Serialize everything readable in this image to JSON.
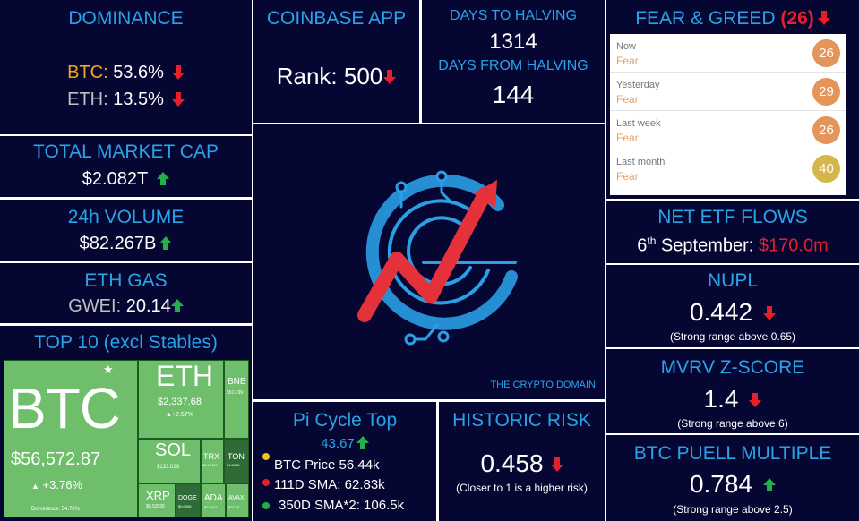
{
  "dominance": {
    "title": "DOMINANCE",
    "btc_label": "BTC:",
    "btc_value": " 53.6%",
    "eth_label": "ETH:",
    "eth_value": " 13.5%"
  },
  "coinbase": {
    "title": "COINBASE APP",
    "rank": "Rank: 500"
  },
  "halving": {
    "to_title": "DAYS TO HALVING",
    "to_value": "1314",
    "from_title": "DAYS FROM HALVING",
    "from_value": "144"
  },
  "fear_greed": {
    "title": "FEAR & GREED",
    "score": "(26)",
    "rows": [
      {
        "label": "Now",
        "sentiment": "Fear",
        "value": "26",
        "color": "#e5945a"
      },
      {
        "label": "Yesterday",
        "sentiment": "Fear",
        "value": "29",
        "color": "#e5945a"
      },
      {
        "label": "Last week",
        "sentiment": "Fear",
        "value": "26",
        "color": "#e5945a"
      },
      {
        "label": "Last month",
        "sentiment": "Fear",
        "value": "40",
        "color": "#d4b64a"
      }
    ]
  },
  "market_cap": {
    "title": "TOTAL MARKET CAP",
    "value": "$2.082T"
  },
  "volume": {
    "title": "24h VOLUME",
    "value": "$82.267B"
  },
  "eth_gas": {
    "title": "ETH GAS",
    "label": "GWEI:",
    "value": " 20.14"
  },
  "top10": {
    "title": "TOP 10 (excl Stables)",
    "btc": {
      "name": "BTC",
      "price": "$56,572.87",
      "change": "+3.76%",
      "dominance": "Dominance: 54.78%"
    },
    "eth": {
      "name": "ETH",
      "price": "$2,337.68",
      "change": "+2.57%"
    },
    "bnb": {
      "name": "BNB",
      "price": "$517.99"
    },
    "sol": {
      "name": "SOL",
      "price": "$133.029"
    },
    "trx": {
      "name": "TRX",
      "price": "$0.15417"
    },
    "ton": {
      "name": "TON",
      "price": "$4.5035"
    },
    "xrp": {
      "name": "XRP",
      "price": "$0.53535"
    },
    "doge": {
      "name": "DOGE",
      "price": "$0.0996"
    },
    "ada": {
      "name": "ADA",
      "price": "$0.3343"
    },
    "avax": {
      "name": "AVAX",
      "price": "$22.50"
    }
  },
  "logo": {
    "caption": "THE CRYPTO DOMAIN"
  },
  "etf": {
    "title": "NET ETF FLOWS",
    "date_day": "6",
    "date_sup": "th",
    "date_rest": " September: ",
    "value": "$170.0m"
  },
  "nupl": {
    "title": "NUPL",
    "value": "0.442",
    "note": "(Strong range above 0.65)"
  },
  "mvrv": {
    "title": "MVRV Z-SCORE",
    "value": "1.4",
    "note": "(Strong range above 6)"
  },
  "pi_cycle": {
    "title": "Pi Cycle Top",
    "value": "43.67",
    "items": [
      {
        "text": "BTC Price 56.44k",
        "color": "#f2c21b"
      },
      {
        "text": "111D SMA: 62.83k",
        "color": "#e5202a"
      },
      {
        "text": "350D SMA*2: 106.5k",
        "color": "#22b04a"
      }
    ]
  },
  "risk": {
    "title": "HISTORIC RISK",
    "value": "0.458",
    "note": "(Closer to 1 is a higher risk)"
  },
  "puell": {
    "title": "BTC PUELL MULTIPLE",
    "value": "0.784",
    "note": "(Strong range above 2.5)"
  },
  "colors": {
    "panel": "#060633",
    "title": "#29a3e8",
    "up": "#22b04a",
    "down": "#e5202a",
    "btc": "#f2a71b",
    "eth": "#c0c0c0"
  }
}
